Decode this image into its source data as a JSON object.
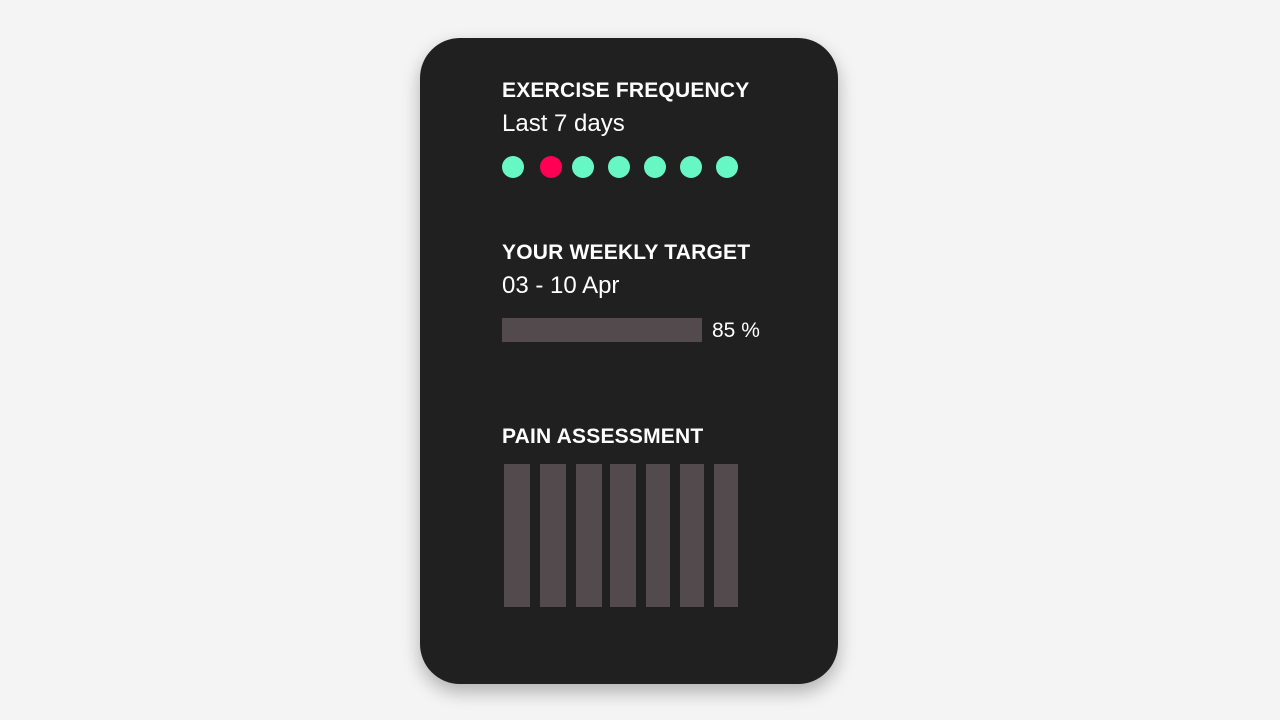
{
  "colors": {
    "good": "#67f7c5",
    "bad": "#ff0055",
    "bar": "#524a4d",
    "card": "#202020"
  },
  "exercise": {
    "title": "EXERCISE FREQUENCY",
    "subtitle": "Last 7 days",
    "days": [
      "done",
      "missed",
      "done",
      "done",
      "done",
      "done",
      "done"
    ]
  },
  "target": {
    "title": "YOUR WEEKLY TARGET",
    "range": "03 - 10 Apr",
    "progress_percent": 85,
    "progress_label": "85 %"
  },
  "pain": {
    "title": "PAIN ASSESSMENT",
    "bar_count": 7
  }
}
